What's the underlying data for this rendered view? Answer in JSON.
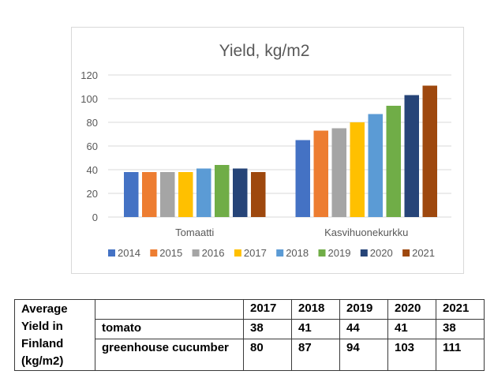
{
  "chart_data": {
    "type": "bar",
    "title": "Yield, kg/m2",
    "xlabel": "",
    "ylabel": "",
    "ylim": [
      0,
      120
    ],
    "yticks": [
      0,
      20,
      40,
      60,
      80,
      100,
      120
    ],
    "grid": true,
    "legend_position": "bottom",
    "categories": [
      "Tomaatti",
      "Kasvihuonekurkku"
    ],
    "series": [
      {
        "name": "2014",
        "color": "#4472C4",
        "values": [
          38,
          65
        ]
      },
      {
        "name": "2015",
        "color": "#ED7D31",
        "values": [
          38,
          73
        ]
      },
      {
        "name": "2016",
        "color": "#A5A5A5",
        "values": [
          38,
          75
        ]
      },
      {
        "name": "2017",
        "color": "#FFC000",
        "values": [
          38,
          80
        ]
      },
      {
        "name": "2018",
        "color": "#5B9BD5",
        "values": [
          41,
          87
        ]
      },
      {
        "name": "2019",
        "color": "#70AD47",
        "values": [
          44,
          94
        ]
      },
      {
        "name": "2020",
        "color": "#264478",
        "values": [
          41,
          103
        ]
      },
      {
        "name": "2021",
        "color": "#9E480E",
        "values": [
          38,
          111
        ]
      }
    ]
  },
  "table": {
    "row_header": [
      "Average",
      "Yield in",
      "Finland",
      "(kg/m2)"
    ],
    "years": [
      "2017",
      "2018",
      "2019",
      "2020",
      "2021"
    ],
    "rows": [
      {
        "label": "tomato",
        "values": [
          "38",
          "41",
          "44",
          "41",
          "38"
        ]
      },
      {
        "label": "greenhouse cucumber",
        "values": [
          "80",
          "87",
          "94",
          "103",
          "111"
        ]
      }
    ]
  }
}
